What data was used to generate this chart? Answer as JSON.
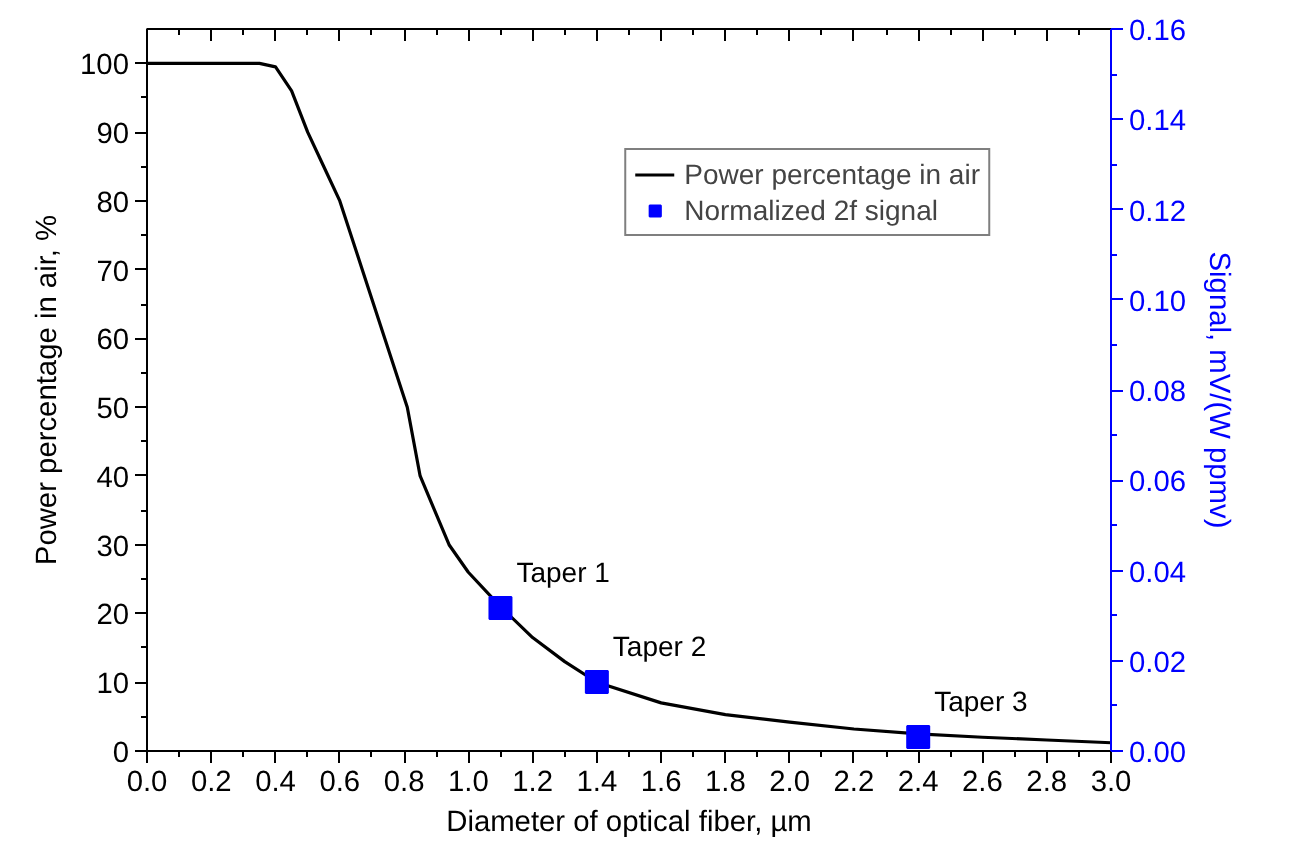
{
  "chart_data": {
    "type": "line",
    "xlabel": "Diameter of optical fiber, µm",
    "ylabel": "Power percentage in air, %",
    "y2label": "Signal, mV/(W ppmv)",
    "xlim": [
      0,
      3
    ],
    "xticks": [
      {
        "value": 0,
        "label": "0.0"
      },
      0.2,
      0.4,
      0.6,
      0.8,
      {
        "value": 1,
        "label": "1.0"
      },
      1.2,
      1.4,
      1.6,
      1.8,
      {
        "value": 2,
        "label": "2.0"
      },
      2.2,
      2.4,
      2.6,
      2.8,
      {
        "value": 3,
        "label": "3.0"
      }
    ],
    "ylim": [
      0,
      105
    ],
    "yticks": [
      0,
      10,
      20,
      30,
      40,
      50,
      60,
      70,
      80,
      90,
      100
    ],
    "y2lim": [
      0,
      0.16
    ],
    "y2ticks": [
      {
        "value": 0,
        "label": "0.00"
      },
      0.02,
      0.04,
      0.06,
      0.08,
      {
        "value": 0.1,
        "label": "0.10"
      },
      0.12,
      0.14,
      0.16
    ],
    "legend": "top right",
    "grid": false,
    "series": [
      {
        "name": "Power percentage in air",
        "color": "#000000",
        "line_style": "solid",
        "x": [
          0,
          0.35,
          0.4,
          0.45,
          0.5,
          0.55,
          0.6,
          0.67,
          0.74,
          0.81,
          0.85,
          0.94,
          1.0,
          1.1,
          1.2,
          1.3,
          1.4,
          1.6,
          1.8,
          2.0,
          2.2,
          2.4,
          2.6,
          2.8,
          3.0
        ],
        "values": [
          100,
          100,
          99.5,
          96,
          90,
          85,
          80,
          70,
          60,
          50,
          40,
          30,
          26,
          21,
          16.5,
          13,
          10,
          7,
          5.3,
          4.2,
          3.2,
          2.5,
          2,
          1.6,
          1.2
        ]
      },
      {
        "name": "Normalized 2f signal",
        "type": "scatter",
        "axis": "y2",
        "marker": "square",
        "color": "#0000ff",
        "x": [
          1.1,
          1.4,
          2.4
        ],
        "values": [
          0.0317,
          0.0153,
          0.0031
        ]
      }
    ],
    "annotations": [
      "Taper 1",
      "Taper 2",
      "Taper 3"
    ]
  }
}
